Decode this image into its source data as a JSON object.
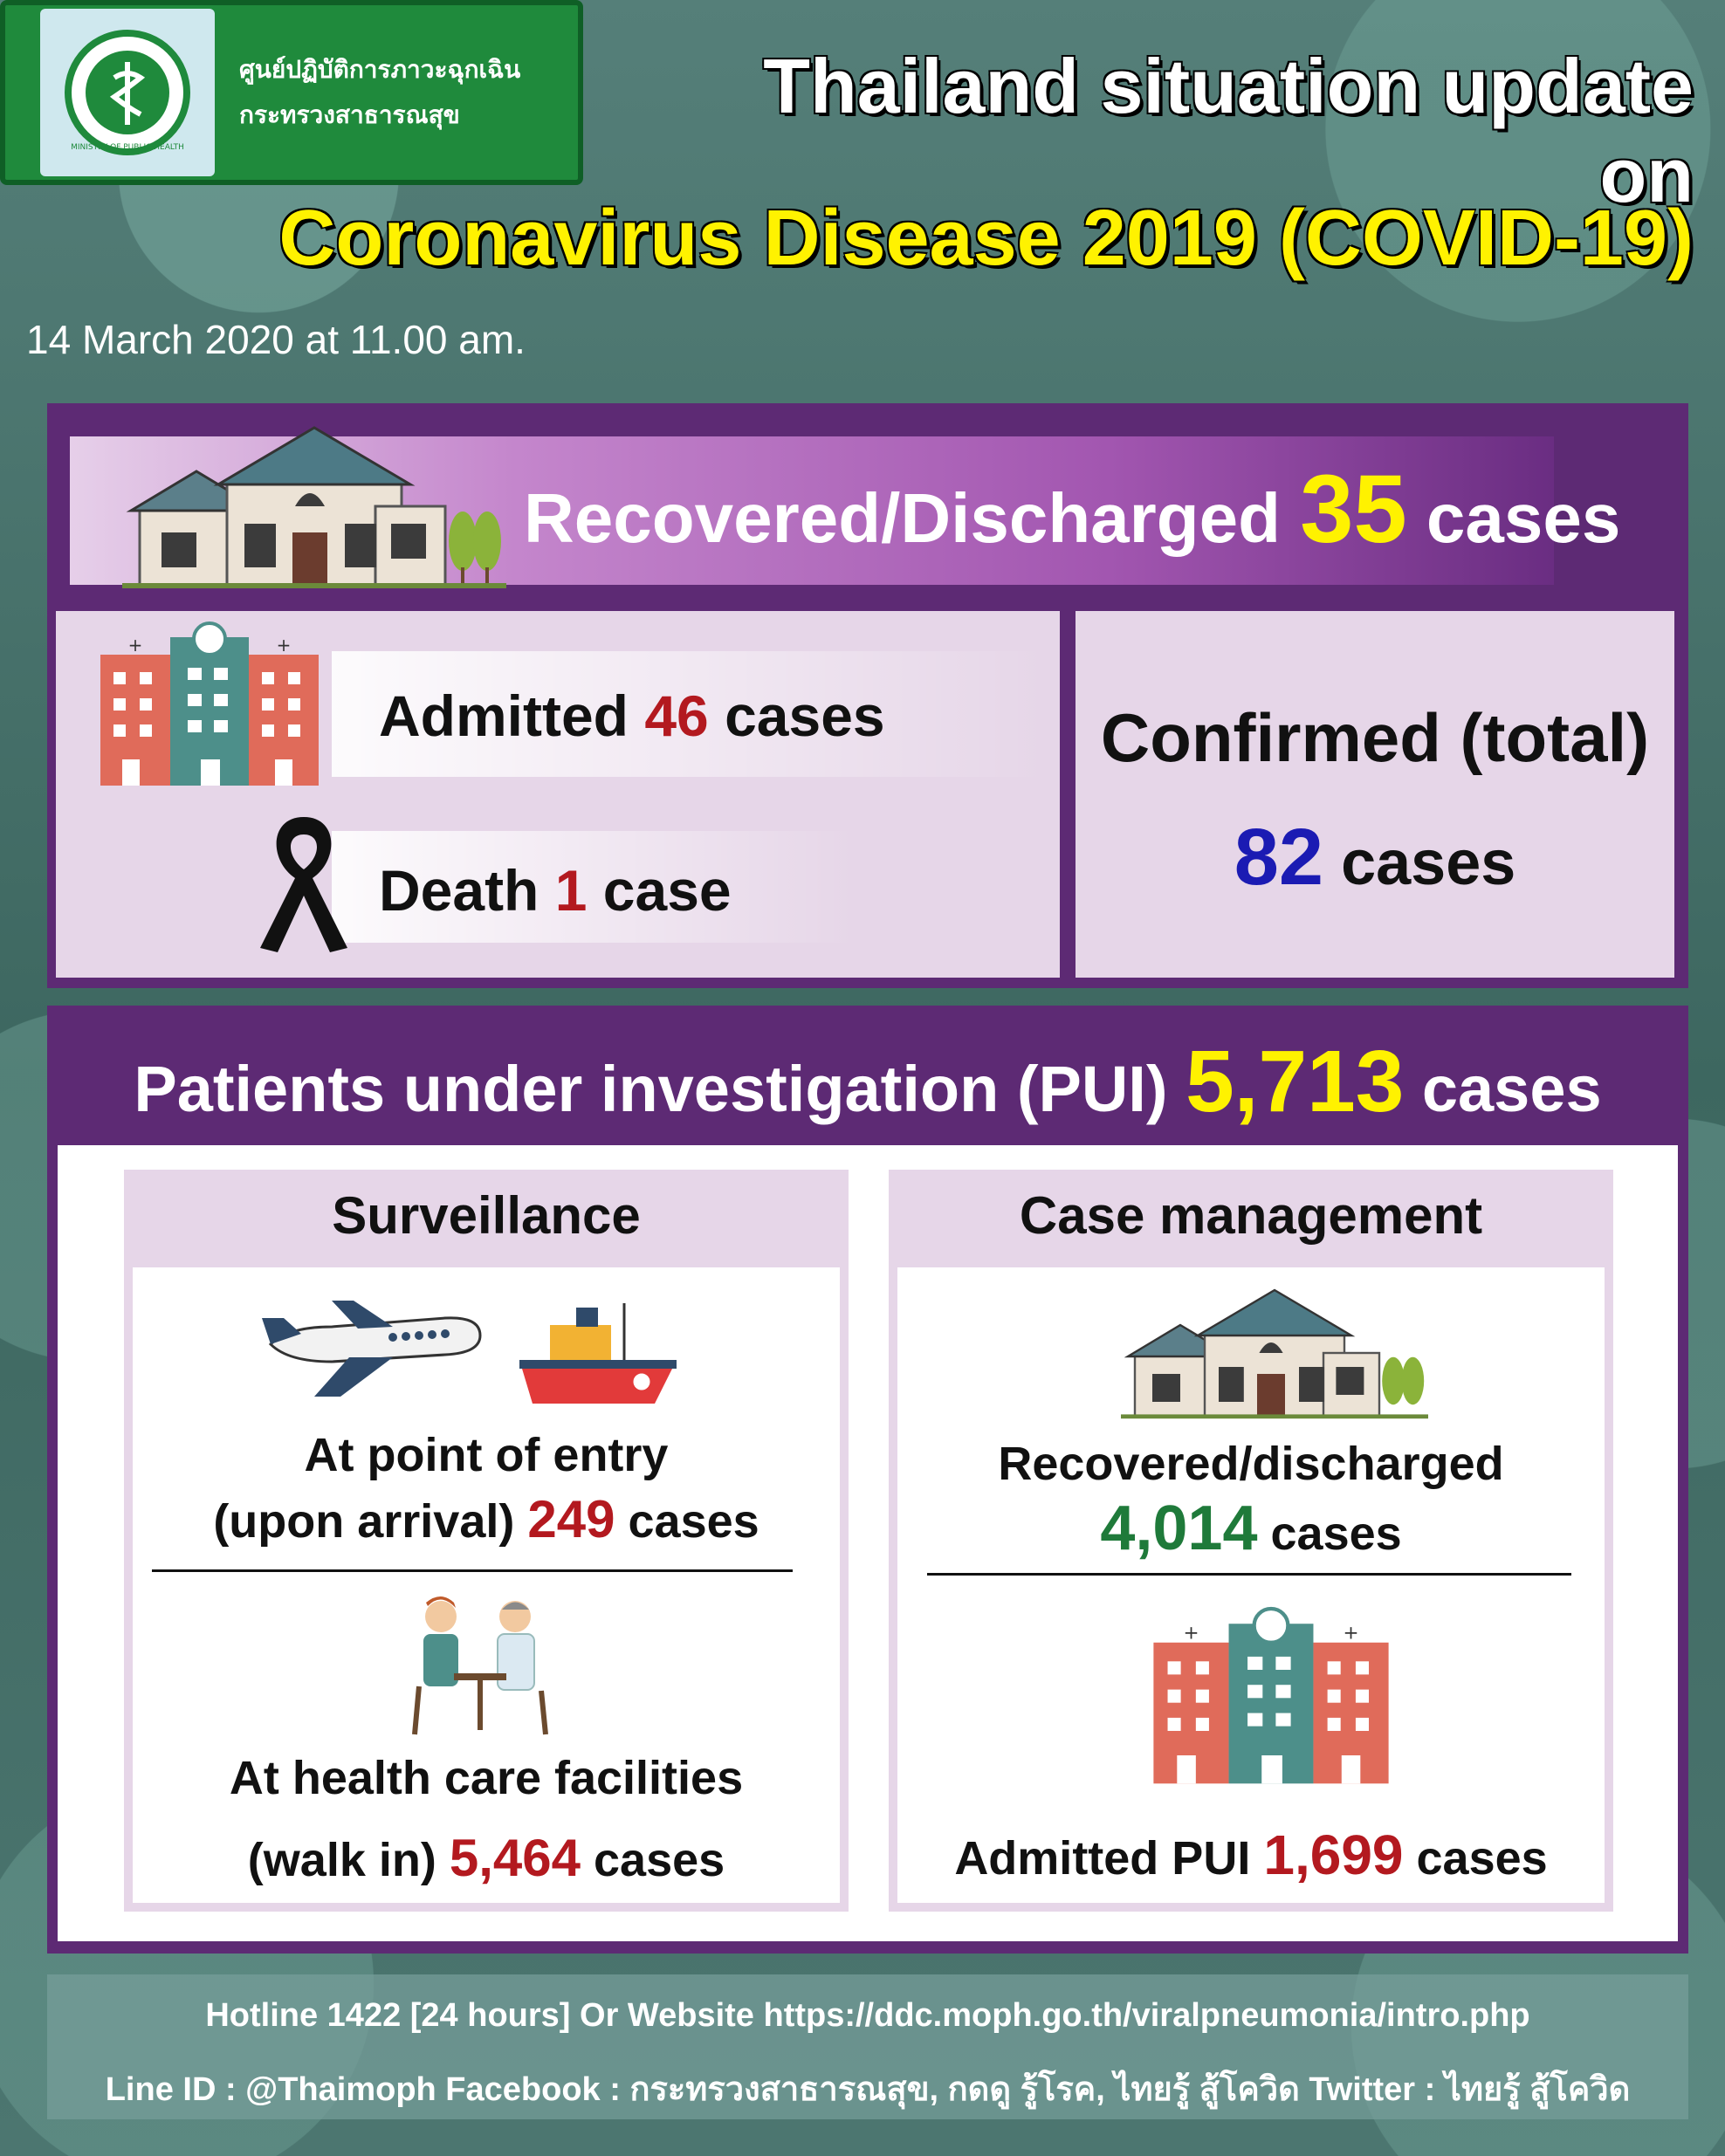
{
  "header": {
    "org_name_line1": "ศูนย์ปฏิบัติการภาวะฉุกเฉิน",
    "org_name_line2": "กระทรวงสาธารณสุข",
    "logo_label": "MINISTRY OF PUBLIC HEALTH",
    "title_line1": "Thailand situation update on",
    "title_line2": "Coronavirus Disease 2019 (COVID-19)",
    "date": "14 March 2020 at 11.00 am."
  },
  "summary": {
    "recovered_label": "Recovered/Discharged",
    "recovered_value": "35",
    "recovered_unit": "cases",
    "admitted_label": "Admitted",
    "admitted_value": "46",
    "admitted_unit": "cases",
    "death_label": "Death",
    "death_value": "1",
    "death_unit": "case",
    "confirmed_label": "Confirmed (total)",
    "confirmed_value": "82",
    "confirmed_unit": "cases"
  },
  "pui": {
    "label": "Patients under investigation (PUI)",
    "value": "5,713",
    "unit": "cases",
    "surveillance": {
      "title": "Surveillance",
      "entry_line1": "At point of entry",
      "entry_line2": "(upon arrival)",
      "entry_value": "249",
      "entry_unit": "cases",
      "facility_line1": "At health care facilities",
      "facility_line2": "(walk in)",
      "facility_value": "5,464",
      "facility_unit": "cases"
    },
    "case_management": {
      "title": "Case management",
      "recovered_label": "Recovered/discharged",
      "recovered_value": "4,014",
      "recovered_unit": "cases",
      "admitted_label": "Admitted PUI",
      "admitted_value": "1,699",
      "admitted_unit": "cases"
    }
  },
  "footer": {
    "line1": "Hotline 1422 [24 hours] Or Website https://ddc.moph.go.th/viralpneumonia/intro.php",
    "line2": "Line ID : @Thaimoph  Facebook : กระทรวงสาธารณสุข, กดดู รู้โรค, ไทยรู้ สู้โควิด Twitter : ไทยรู้ สู้โควิด"
  },
  "colors": {
    "panel_purple": "#5d2a74",
    "highlight_yellow": "#fff200",
    "value_red": "#b3191f",
    "value_blue": "#1b1bb3",
    "value_green": "#1f7a3a"
  }
}
